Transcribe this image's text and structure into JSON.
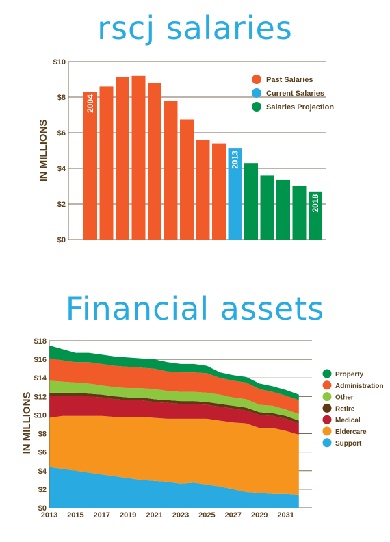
{
  "chart_data": [
    {
      "type": "bar",
      "title": "rscj salaries",
      "ylabel": "IN MILLIONS",
      "ylim": [
        0,
        10
      ],
      "yticks": [
        "$0",
        "$2",
        "$4",
        "$6",
        "$8",
        "$10"
      ],
      "values": [
        8.3,
        8.6,
        9.15,
        9.2,
        8.8,
        7.8,
        6.75,
        5.6,
        5.4,
        5.15,
        4.3,
        3.6,
        3.35,
        3.0,
        2.7
      ],
      "year_labels": [
        {
          "index": 0,
          "label": "2004"
        },
        {
          "index": 9,
          "label": "2013"
        },
        {
          "index": 14,
          "label": "2018"
        }
      ],
      "series": [
        {
          "name": "Past Salaries",
          "color": "#f15a29",
          "start": 0,
          "end": 8
        },
        {
          "name": "Current Salaries",
          "color": "#29abe2",
          "start": 9,
          "end": 9
        },
        {
          "name": "Salaries Projection",
          "color": "#00934b",
          "start": 10,
          "end": 14
        }
      ],
      "legend_position": "top-right",
      "grid": true
    },
    {
      "type": "area",
      "title": "Financial assets",
      "ylabel": "IN MILLIONS",
      "ylim": [
        0,
        18
      ],
      "yticks": [
        "$0",
        "$2",
        "$4",
        "$6",
        "$8",
        "$10",
        "$12",
        "$14",
        "$16",
        "$18"
      ],
      "xticks": [
        "2013",
        "2015",
        "2017",
        "2019",
        "2021",
        "2023",
        "2025",
        "2027",
        "2029",
        "2031"
      ],
      "x": [
        2013,
        2014,
        2015,
        2016,
        2017,
        2018,
        2019,
        2020,
        2021,
        2022,
        2023,
        2024,
        2025,
        2026,
        2027,
        2028,
        2029,
        2030,
        2031,
        2032
      ],
      "stacked": true,
      "legend_position": "right",
      "grid": true,
      "series": [
        {
          "name": "Support",
          "color": "#29abe2",
          "values": [
            4.4,
            4.2,
            4.0,
            3.8,
            3.6,
            3.4,
            3.2,
            3.0,
            2.9,
            2.8,
            2.6,
            2.7,
            2.5,
            2.3,
            2.0,
            1.7,
            1.6,
            1.5,
            1.5,
            1.4
          ]
        },
        {
          "name": "Eldercare",
          "color": "#f7941d",
          "values": [
            5.3,
            5.7,
            5.9,
            6.1,
            6.3,
            6.4,
            6.6,
            6.8,
            6.8,
            6.8,
            7.0,
            6.9,
            7.1,
            7.1,
            7.2,
            7.4,
            7.0,
            7.1,
            6.8,
            6.5
          ]
        },
        {
          "name": "Medical",
          "color": "#be1e2d",
          "values": [
            2.4,
            2.2,
            2.2,
            2.1,
            2.0,
            1.9,
            1.8,
            1.8,
            1.7,
            1.7,
            1.6,
            1.6,
            1.5,
            1.5,
            1.5,
            1.4,
            1.4,
            1.3,
            1.3,
            1.2
          ]
        },
        {
          "name": "Retire",
          "color": "#603813",
          "values": [
            0.3,
            0.3,
            0.3,
            0.3,
            0.3,
            0.3,
            0.3,
            0.3,
            0.3,
            0.3,
            0.3,
            0.3,
            0.3,
            0.3,
            0.3,
            0.3,
            0.3,
            0.3,
            0.3,
            0.3
          ]
        },
        {
          "name": "Other",
          "color": "#8dc63f",
          "values": [
            1.3,
            1.2,
            1.1,
            1.1,
            1.0,
            1.0,
            1.0,
            1.0,
            1.1,
            1.0,
            1.0,
            1.0,
            1.0,
            1.0,
            0.9,
            0.9,
            0.8,
            0.8,
            0.7,
            0.7
          ]
        },
        {
          "name": "Administration",
          "color": "#f15a29",
          "values": [
            2.4,
            2.3,
            2.2,
            2.3,
            2.3,
            2.3,
            2.3,
            2.2,
            2.2,
            2.1,
            2.1,
            2.1,
            2.1,
            1.8,
            1.8,
            1.8,
            1.7,
            1.5,
            1.5,
            1.5
          ]
        },
        {
          "name": "Property",
          "color": "#00934b",
          "values": [
            1.4,
            1.2,
            1.0,
            1.0,
            1.0,
            1.0,
            1.0,
            1.0,
            1.0,
            1.0,
            0.9,
            0.9,
            0.8,
            0.6,
            0.6,
            0.6,
            0.6,
            0.6,
            0.6,
            0.6
          ]
        }
      ]
    }
  ]
}
